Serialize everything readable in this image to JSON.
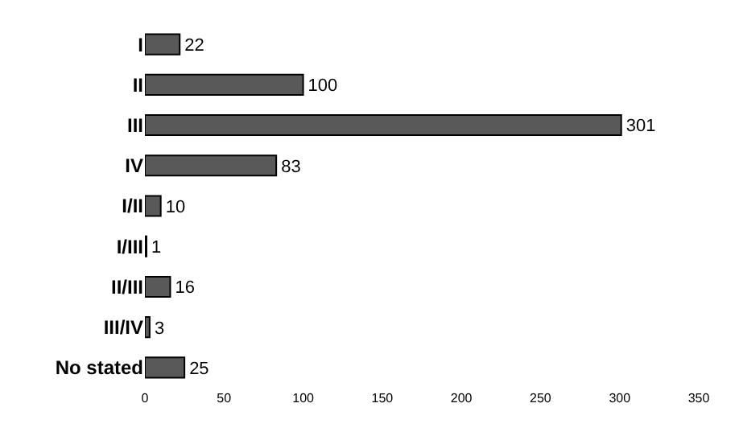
{
  "chart_data": {
    "type": "bar",
    "orientation": "horizontal",
    "categories": [
      "I",
      "II",
      "III",
      "IV",
      "I/II",
      "I/III",
      "II/III",
      "III/IV",
      "No stated"
    ],
    "values": [
      22,
      100,
      301,
      83,
      10,
      1,
      16,
      3,
      25
    ],
    "color": "#595959",
    "data_labels": true,
    "grid": false,
    "legend": false,
    "xlim": [
      0,
      350
    ],
    "xticks": [
      0,
      50,
      100,
      150,
      200,
      250,
      300,
      350
    ]
  }
}
